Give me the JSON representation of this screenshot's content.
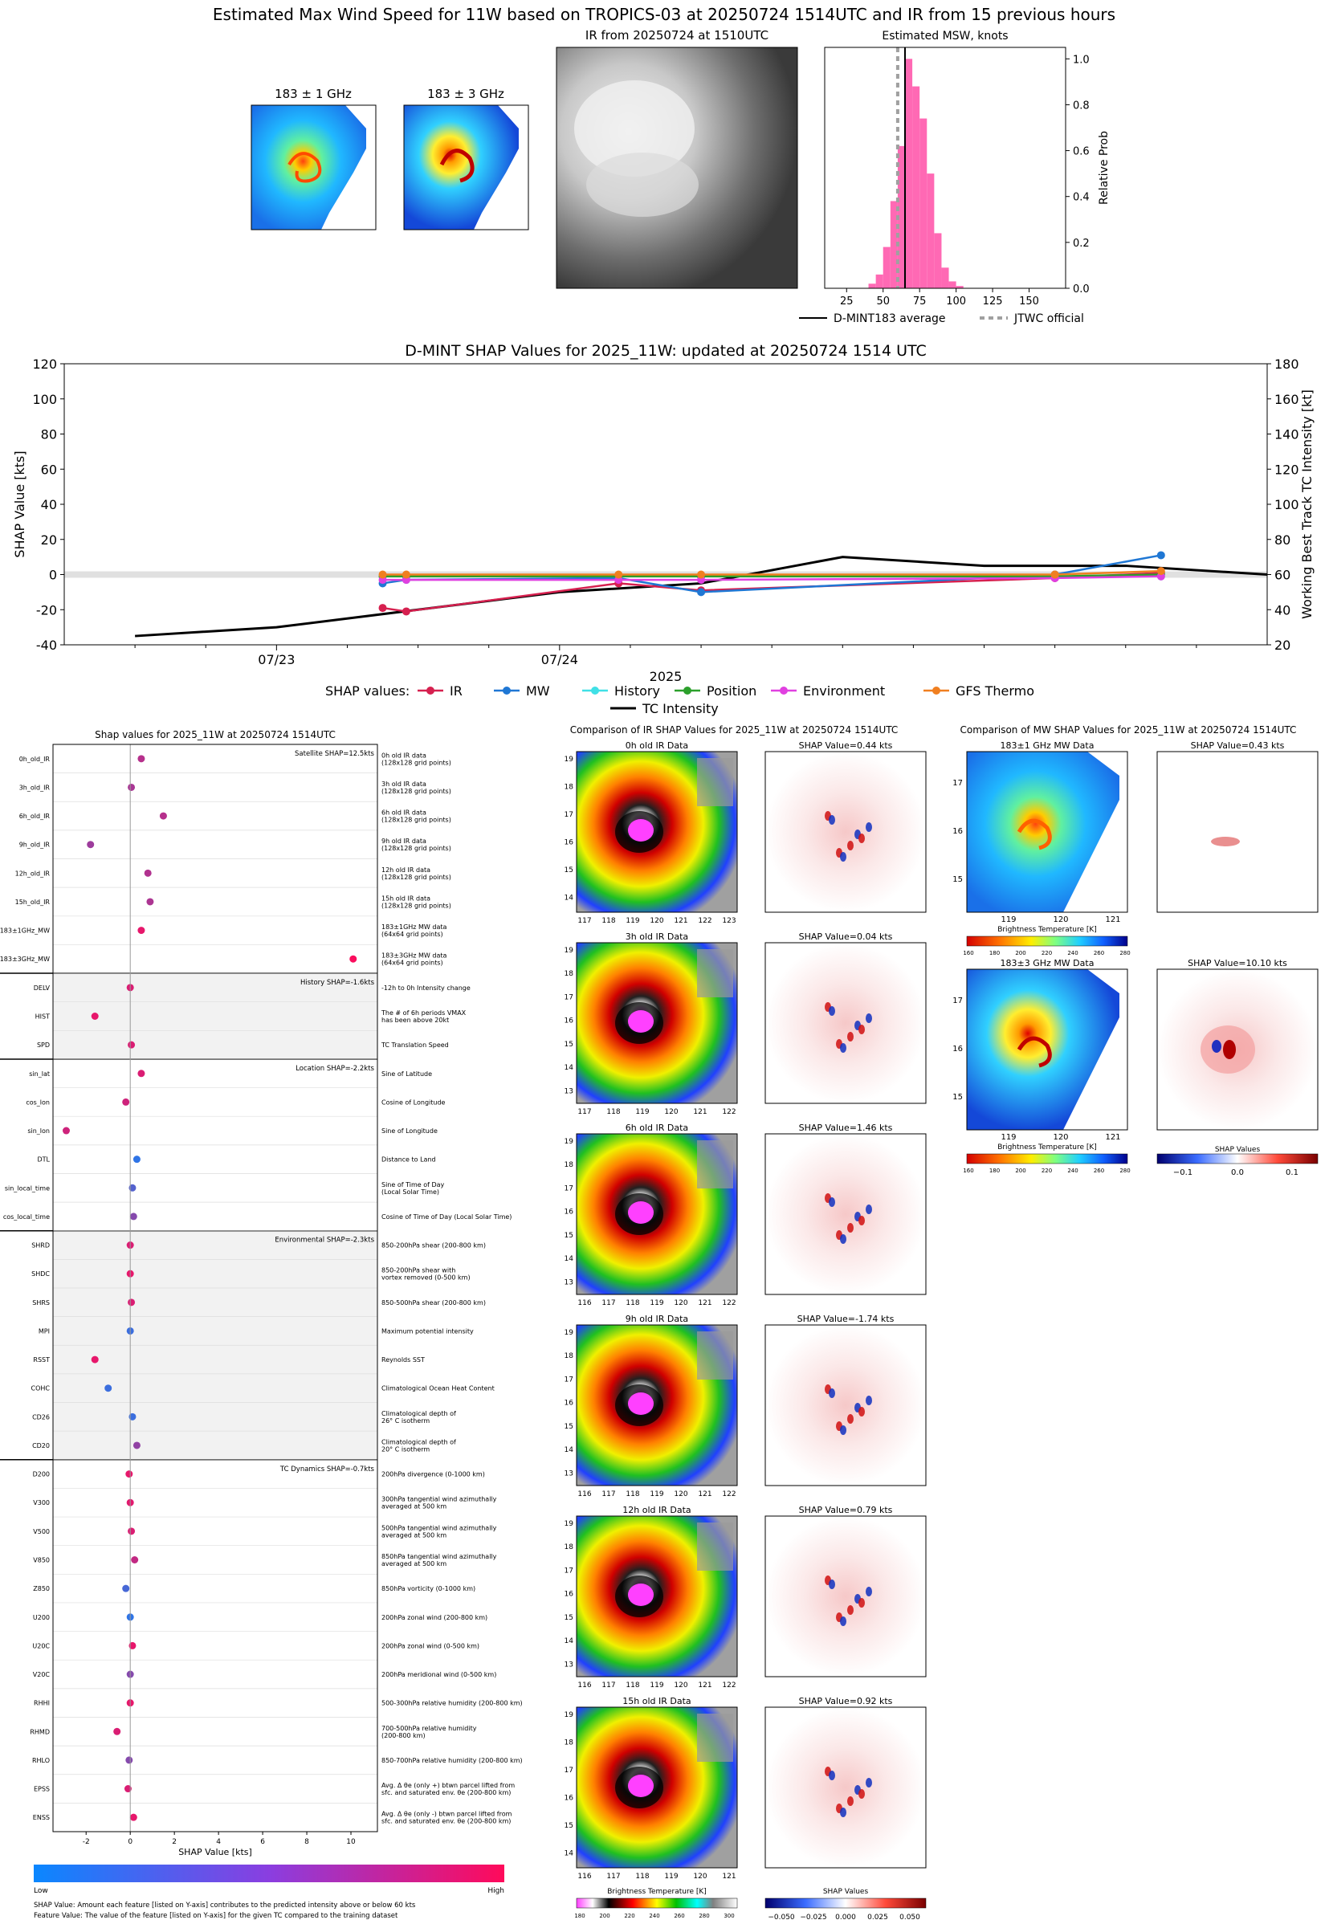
{
  "colors": {
    "ir": "#d6204f",
    "mw": "#1f77d4",
    "history": "#40e0e6",
    "position": "#2ca02c",
    "environment": "#e040e0",
    "gfs": "#f07f20",
    "intensity": "#000000",
    "hist_bar": "#ff69b4",
    "jtwc": "#a0a0a0"
  },
  "top": {
    "title": "Estimated Max Wind Speed for 11W based on TROPICS-03 at 20250724 1514UTC and IR from 15 previous hours",
    "mw1_title": "183 ± 1 GHz",
    "mw3_title": "183 ± 3 GHz",
    "ir_title": "IR from 20250724 at 1510UTC",
    "hist_title": "Estimated MSW, knots",
    "hist_ylabel": "Relative Prob",
    "legend_dmint": "D-MINT183 average",
    "legend_jtwc": "JTWC official"
  },
  "timeline": {
    "title": "D-MINT SHAP Values for 2025_11W: updated at 20250724 1514 UTC",
    "ylabel_left": "SHAP Value [kts]",
    "ylabel_right": "Working Best Track TC Intensity [kt]",
    "xlabel": "2025",
    "legend_title": "SHAP values:",
    "legend": [
      "IR",
      "MW",
      "History",
      "Position",
      "Environment",
      "GFS Thermo"
    ],
    "legend_intensity": "TC Intensity"
  },
  "shap_panel": {
    "title": "Shap values for 2025_11W at 20250724 1514UTC",
    "xlabel": "SHAP Value [kts]",
    "group_labels": [
      "Satellite SHAP=12.5kts",
      "History SHAP=-1.6kts",
      "Location SHAP=-2.2kts",
      "Environmental SHAP=-2.3kts",
      "TC Dynamics SHAP=-0.7kts"
    ],
    "features": [
      "0h_old_IR",
      "3h_old_IR",
      "6h_old_IR",
      "9h_old_IR",
      "12h_old_IR",
      "15h_old_IR",
      "183±1GHz_MW",
      "183±3GHz_MW",
      "DELV",
      "HIST",
      "SPD",
      "sin_lat",
      "cos_lon",
      "sin_lon",
      "DTL",
      "sin_local_time",
      "cos_local_time",
      "SHRD",
      "SHDC",
      "SHRS",
      "MPI",
      "RSST",
      "COHC",
      "CD26",
      "CD20",
      "D200",
      "V300",
      "V500",
      "V850",
      "Z850",
      "U200",
      "U20C",
      "V20C",
      "RHHI",
      "RHMD",
      "RHLO",
      "EPSS",
      "ENSS"
    ],
    "descriptions": [
      "0h old IR data|(128x128 grid points)",
      "3h old IR data|(128x128 grid points)",
      "6h old IR data|(128x128 grid points)",
      "9h old IR data|(128x128 grid points)",
      "12h old IR data|(128x128 grid points)",
      "15h old IR data|(128x128 grid points)",
      "183±1GHz MW data|(64x64 grid points)",
      "183±3GHz MW data|(64x64 grid points)",
      "-12h to 0h Intensity change",
      "The # of 6h periods VMAX|has been above 20kt",
      "TC Translation Speed",
      "Sine of Latitude",
      "Cosine of Longitude",
      "Sine of Longitude",
      "Distance to Land",
      "Sine of Time of Day|(Local Solar Time)",
      "Cosine of Time of Day (Local Solar Time)",
      "850-200hPa shear (200-800 km)",
      "850-200hPa shear with|vortex removed (0-500 km)",
      "850-500hPa shear (200-800 km)",
      "Maximum potential intensity",
      "Reynolds SST",
      "Climatological Ocean Heat Content",
      "Climatological depth of|26° C isotherm",
      "Climatological depth of|20° C isotherm",
      "200hPa divergence (0-1000 km)",
      "300hPa tangential wind azimuthally|averaged at 500 km",
      "500hPa tangential wind azimuthally|averaged at 500 km",
      "850hPa tangential wind azimuthally|averaged at 500 km",
      "850hPa vorticity (0-1000 km)",
      "200hPa zonal wind (200-800 km)",
      "200hPa zonal wind (0-500 km)",
      "200hPa meridional wind (0-500 km)",
      "500-300hPa relative humidity (200-800 km)",
      "700-500hPa relative humidity|(200-800 km)",
      "850-700hPa relative humidity (200-800 km)",
      "Avg. Δ θe (only +) btwn parcel lifted from|sfc. and saturated env. θe (200-800 km)",
      "Avg. Δ θe (only -) btwn parcel lifted from|sfc. and saturated env. θe (200-800 km)"
    ],
    "values": [
      0.5,
      0.05,
      1.5,
      -1.8,
      0.8,
      0.9,
      0.5,
      10.1,
      0.0,
      -1.6,
      0.05,
      0.5,
      -0.2,
      -2.9,
      0.3,
      0.1,
      0.15,
      0.0,
      0.0,
      0.05,
      0.0,
      -1.6,
      -1.0,
      0.1,
      0.3,
      -0.05,
      0.0,
      0.05,
      0.2,
      -0.2,
      0.0,
      0.1,
      0.0,
      0.0,
      -0.6,
      -0.05,
      -0.1,
      0.15
    ],
    "feature_values": [
      0.7,
      0.65,
      0.7,
      0.6,
      0.68,
      0.66,
      0.9,
      0.98,
      0.85,
      0.9,
      0.85,
      0.85,
      0.8,
      0.8,
      0.15,
      0.3,
      0.5,
      0.85,
      0.9,
      0.85,
      0.2,
      0.9,
      0.2,
      0.2,
      0.55,
      0.9,
      0.88,
      0.85,
      0.75,
      0.25,
      0.15,
      0.9,
      0.5,
      0.9,
      0.85,
      0.5,
      0.85,
      0.9
    ],
    "colorbar_low": "Low",
    "colorbar_high": "High",
    "footnote1": "SHAP Value: Amount each feature [listed on Y-axis] contributes to the predicted intensity above or below 60 kts",
    "footnote2": "Feature Value: The value of the feature [listed on Y-axis] for the given TC compared to the training dataset"
  },
  "ir_panel": {
    "title": "Comparison of IR SHAP Values for 2025_11W at 20250724 1514UTC",
    "data_titles": [
      "0h old IR Data",
      "3h old IR Data",
      "6h old IR Data",
      "9h old IR Data",
      "12h old IR Data",
      "15h old IR Data"
    ],
    "shap_titles": [
      "SHAP Value=0.44 kts",
      "SHAP Value=0.04 kts",
      "SHAP Value=1.46 kts",
      "SHAP Value=-1.74 kts",
      "SHAP Value=0.79 kts",
      "SHAP Value=0.92 kts"
    ],
    "colorbar_label": "Brightness Temperature [K]",
    "shap_colorbar_label": "SHAP Values"
  },
  "mw_panel": {
    "title": "Comparison of MW SHAP Values for 2025_11W at 20250724 1514UTC",
    "data_titles": [
      "183±1 GHz MW Data",
      "183±3 GHz MW Data"
    ],
    "shap_titles": [
      "SHAP Value=0.43 kts",
      "SHAP Value=10.10 kts"
    ],
    "colorbar_label": "Brightness Temperature [K]",
    "shap_colorbar_label": "SHAP Values"
  },
  "chart_data": [
    {
      "type": "bar",
      "title": "Estimated MSW, knots",
      "ylabel": "Relative Prob",
      "xlim": [
        10,
        175
      ],
      "ylim": [
        0,
        1.05
      ],
      "xticks": [
        25,
        50,
        75,
        100,
        125,
        150
      ],
      "yticks": [
        0.0,
        0.2,
        0.4,
        0.6,
        0.8,
        1.0
      ],
      "bin_edges": [
        40,
        45,
        50,
        55,
        60,
        65,
        70,
        75,
        80,
        85,
        90,
        95,
        100,
        105
      ],
      "values": [
        0.02,
        0.06,
        0.18,
        0.38,
        0.62,
        1.0,
        0.88,
        0.74,
        0.5,
        0.24,
        0.09,
        0.03,
        0.01
      ],
      "dmint_average": 65,
      "jtwc_official": 60
    },
    {
      "type": "line",
      "title": "D-MINT SHAP Values for 2025_11W: updated at 20250724 1514 UTC",
      "xlabel": "2025",
      "ylabel": "SHAP Value [kts]",
      "y2label": "Working Best Track TC Intensity [kt]",
      "xticklabels": [
        "07/23",
        "07/24"
      ],
      "ylim": [
        -40,
        120
      ],
      "y2lim": [
        20,
        180
      ],
      "yticks": [
        -40,
        -20,
        0,
        20,
        40,
        60,
        80,
        100,
        120
      ],
      "y2ticks": [
        20,
        40,
        60,
        80,
        100,
        120,
        140,
        160,
        180
      ],
      "x_hours": [
        0,
        12,
        24,
        36,
        48,
        60,
        72
      ],
      "intensity": [
        25,
        30,
        40,
        50,
        55,
        70,
        65,
        65,
        60
      ],
      "intensity_hours": [
        -12,
        0,
        12,
        24,
        36,
        48,
        60,
        72,
        84
      ],
      "series": [
        {
          "name": "IR",
          "hours": [
            9,
            11,
            29,
            36,
            66,
            66,
            75
          ],
          "values": [
            -19,
            -21,
            -5,
            -9,
            -2,
            -2,
            1
          ]
        },
        {
          "name": "MW",
          "hours": [
            9,
            11,
            29,
            36,
            66,
            66,
            75
          ],
          "values": [
            -5,
            -3,
            -2,
            -10,
            0,
            0,
            11
          ]
        },
        {
          "name": "History",
          "hours": [
            9,
            11,
            29,
            36,
            66,
            66,
            75
          ],
          "values": [
            -1,
            -1,
            -1,
            -1,
            -1,
            -1,
            -1
          ]
        },
        {
          "name": "Position",
          "hours": [
            9,
            11,
            29,
            36,
            66,
            66,
            75
          ],
          "values": [
            -1,
            -1,
            -1,
            -1,
            -1,
            -1,
            0
          ]
        },
        {
          "name": "Environment",
          "hours": [
            9,
            11,
            29,
            36,
            66,
            66,
            75
          ],
          "values": [
            -3,
            -3,
            -3,
            -3,
            -2,
            -2,
            -1
          ]
        },
        {
          "name": "GFS Thermo",
          "hours": [
            9,
            11,
            29,
            36,
            66,
            66,
            75
          ],
          "values": [
            0,
            0,
            0,
            0,
            0,
            0,
            2
          ]
        }
      ]
    }
  ]
}
